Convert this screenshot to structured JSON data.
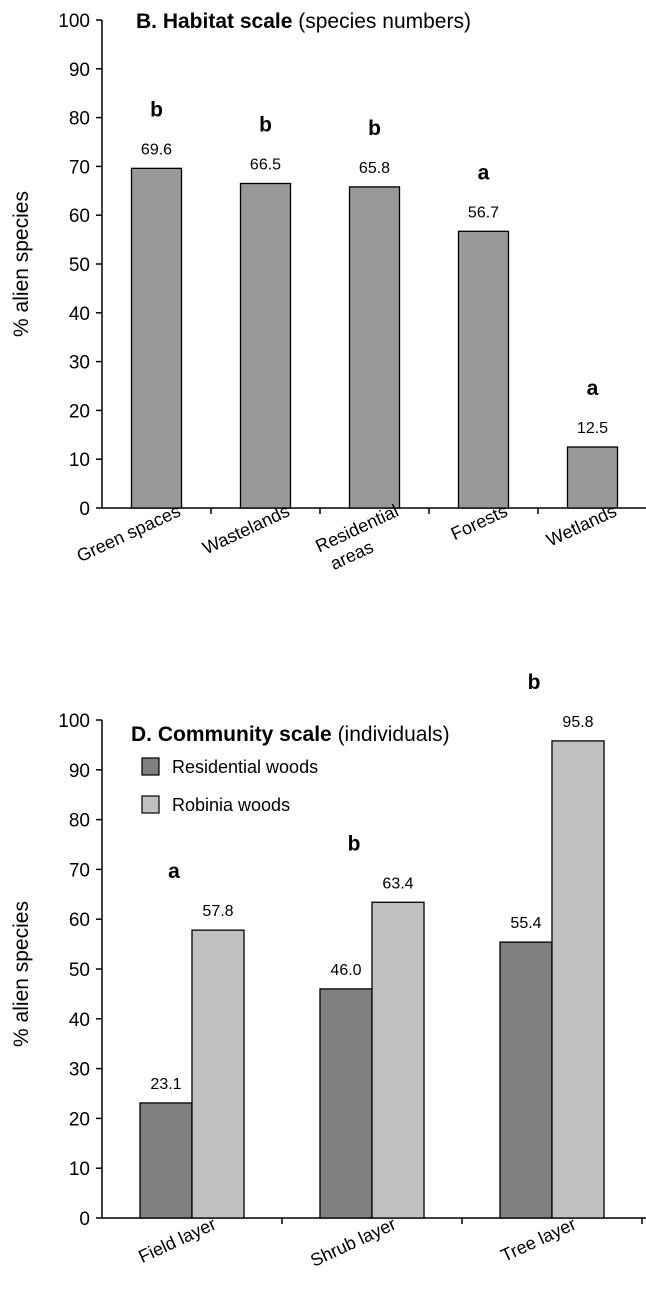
{
  "chart_data": [
    {
      "type": "bar",
      "title_bold": "B. Habitat scale",
      "title_rest": " (species numbers)",
      "xlabel": "",
      "ylabel": "% alien species",
      "ylim": [
        0,
        100
      ],
      "yticks": [
        "0",
        "10",
        "20",
        "30",
        "40",
        "50",
        "60",
        "70",
        "80",
        "90",
        "100"
      ],
      "categories": [
        [
          "Green spaces"
        ],
        [
          "Wastelands"
        ],
        [
          "Residential",
          "areas"
        ],
        [
          "Forests"
        ],
        [
          "Wetlands"
        ]
      ],
      "series": [
        {
          "values": [
            69.6,
            66.5,
            65.8,
            56.7,
            12.5
          ],
          "labels": [
            "69.6",
            "66.5",
            "65.8",
            "56.7",
            "12.5"
          ],
          "color": "#999999"
        }
      ],
      "letters": [
        "b",
        "b",
        "b",
        "a",
        "a"
      ],
      "grid": false
    },
    {
      "type": "bar",
      "title_bold": "D. Community scale",
      "title_rest": " (individuals)",
      "xlabel": "",
      "ylabel": "% alien species",
      "ylim": [
        0,
        100
      ],
      "yticks": [
        "0",
        "10",
        "20",
        "30",
        "40",
        "50",
        "60",
        "70",
        "80",
        "90",
        "100"
      ],
      "categories": [
        [
          "Field layer"
        ],
        [
          "Shrub layer"
        ],
        [
          "Tree layer"
        ]
      ],
      "series": [
        {
          "name": "Residential woods",
          "values": [
            23.1,
            46.0,
            55.4
          ],
          "labels": [
            "23.1",
            "46.0",
            "55.4"
          ],
          "color": "#808080"
        },
        {
          "name": "Robinia woods",
          "values": [
            57.8,
            63.4,
            95.8
          ],
          "labels": [
            "57.8",
            "63.4",
            "95.8"
          ],
          "color": "#c0c0c0"
        }
      ],
      "letters": [
        "a",
        "b",
        "b"
      ],
      "legend": "top-left",
      "grid": false
    }
  ]
}
